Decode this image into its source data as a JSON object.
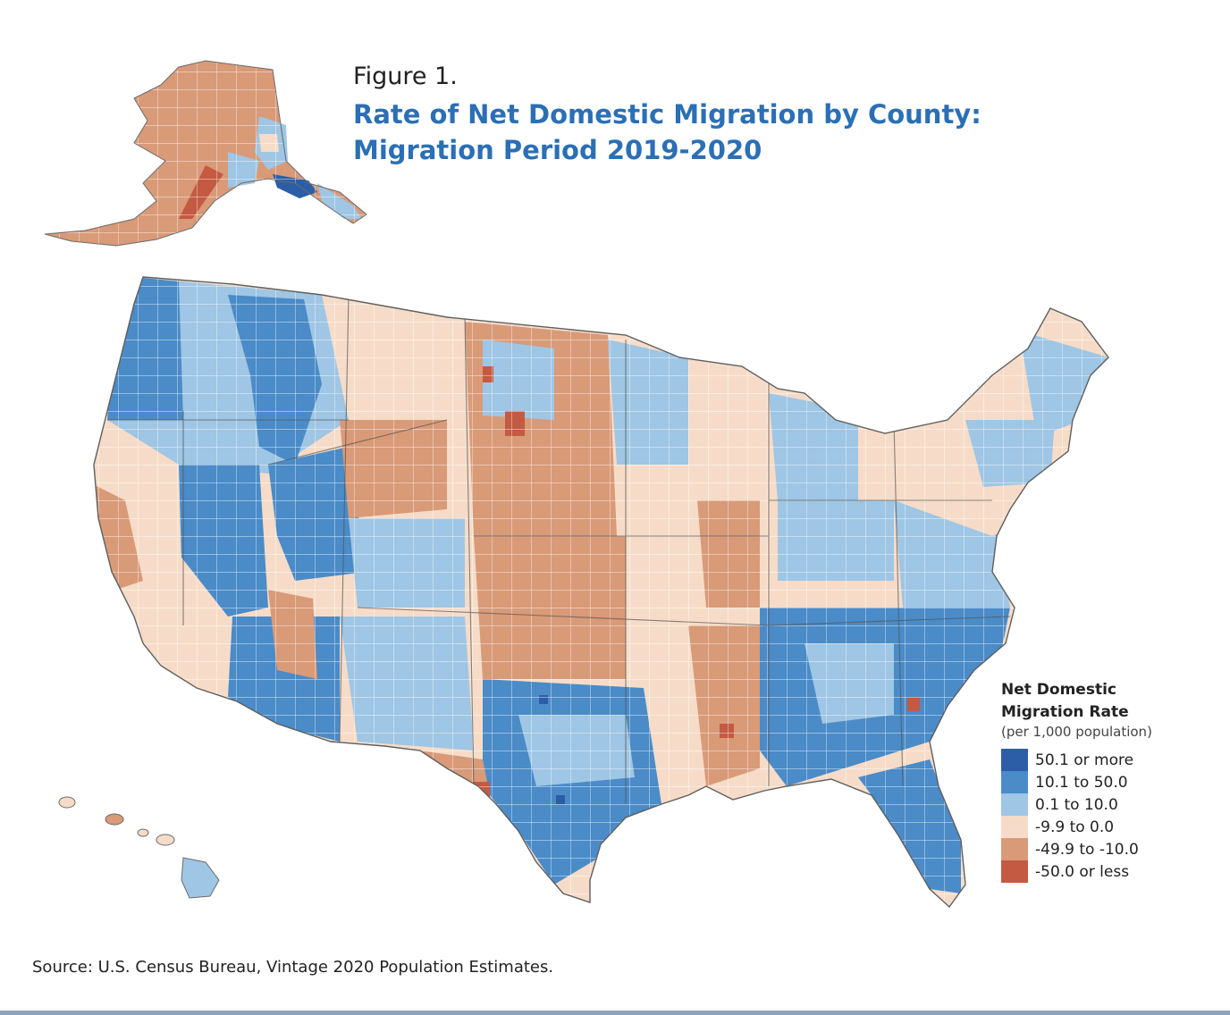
{
  "figure_label": "Figure 1.",
  "title_line1": "Rate of Net Domestic Migration by County:",
  "title_line2": "Migration Period 2019-2020",
  "legend": {
    "title_line1": "Net Domestic",
    "title_line2": "Migration Rate",
    "subtitle": "(per 1,000 population)",
    "items": [
      {
        "label": "50.1 or more",
        "color": "#2c5ea8"
      },
      {
        "label": "10.1 to 50.0",
        "color": "#4a8bc8"
      },
      {
        "label": "0.1 to 10.0",
        "color": "#9fc6e4"
      },
      {
        "label": "-9.9 to 0.0",
        "color": "#f6dcc8"
      },
      {
        "label": "-49.9 to -10.0",
        "color": "#d99a78"
      },
      {
        "label": "-50.0 or less",
        "color": "#c45a42"
      }
    ]
  },
  "source": "Source: U.S. Census Bureau, Vintage 2020 Population Estimates."
}
